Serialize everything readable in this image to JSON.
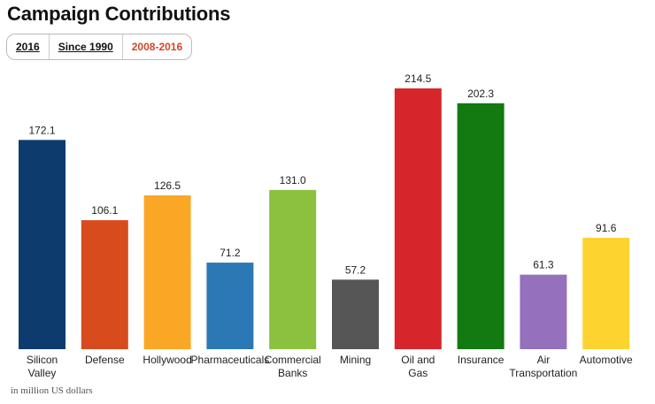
{
  "title": "Campaign Contributions",
  "tabs": [
    {
      "label": "2016",
      "active": false
    },
    {
      "label": "Since 1990",
      "active": false
    },
    {
      "label": "2008-2016",
      "active": true,
      "color": "#d2452b"
    }
  ],
  "note": "in million US dollars",
  "chart_data": {
    "type": "bar",
    "title": "",
    "xlabel": "",
    "ylabel": "",
    "grid": false,
    "categories": [
      [
        "Silicon",
        "Valley"
      ],
      [
        "Defense"
      ],
      [
        "Hollywood"
      ],
      [
        "Pharmaceuticals"
      ],
      [
        "Commercial",
        "Banks"
      ],
      [
        "Mining"
      ],
      [
        "Oil and",
        "Gas"
      ],
      [
        "Insurance"
      ],
      [
        "Air",
        "Transportation"
      ],
      [
        "Automotive"
      ]
    ],
    "values": [
      172.1,
      106.1,
      126.5,
      71.2,
      131.0,
      57.2,
      214.5,
      202.3,
      61.3,
      91.6
    ],
    "value_labels": [
      "172.1",
      "106.1",
      "126.5",
      "71.2",
      "131.0",
      "57.2",
      "214.5",
      "202.3",
      "61.3",
      "91.6"
    ],
    "colors": [
      "#0d3b6e",
      "#d84b1d",
      "#fba726",
      "#2b78b4",
      "#8cc13f",
      "#565656",
      "#d6262b",
      "#127a11",
      "#9470bd",
      "#fdd32f"
    ]
  }
}
